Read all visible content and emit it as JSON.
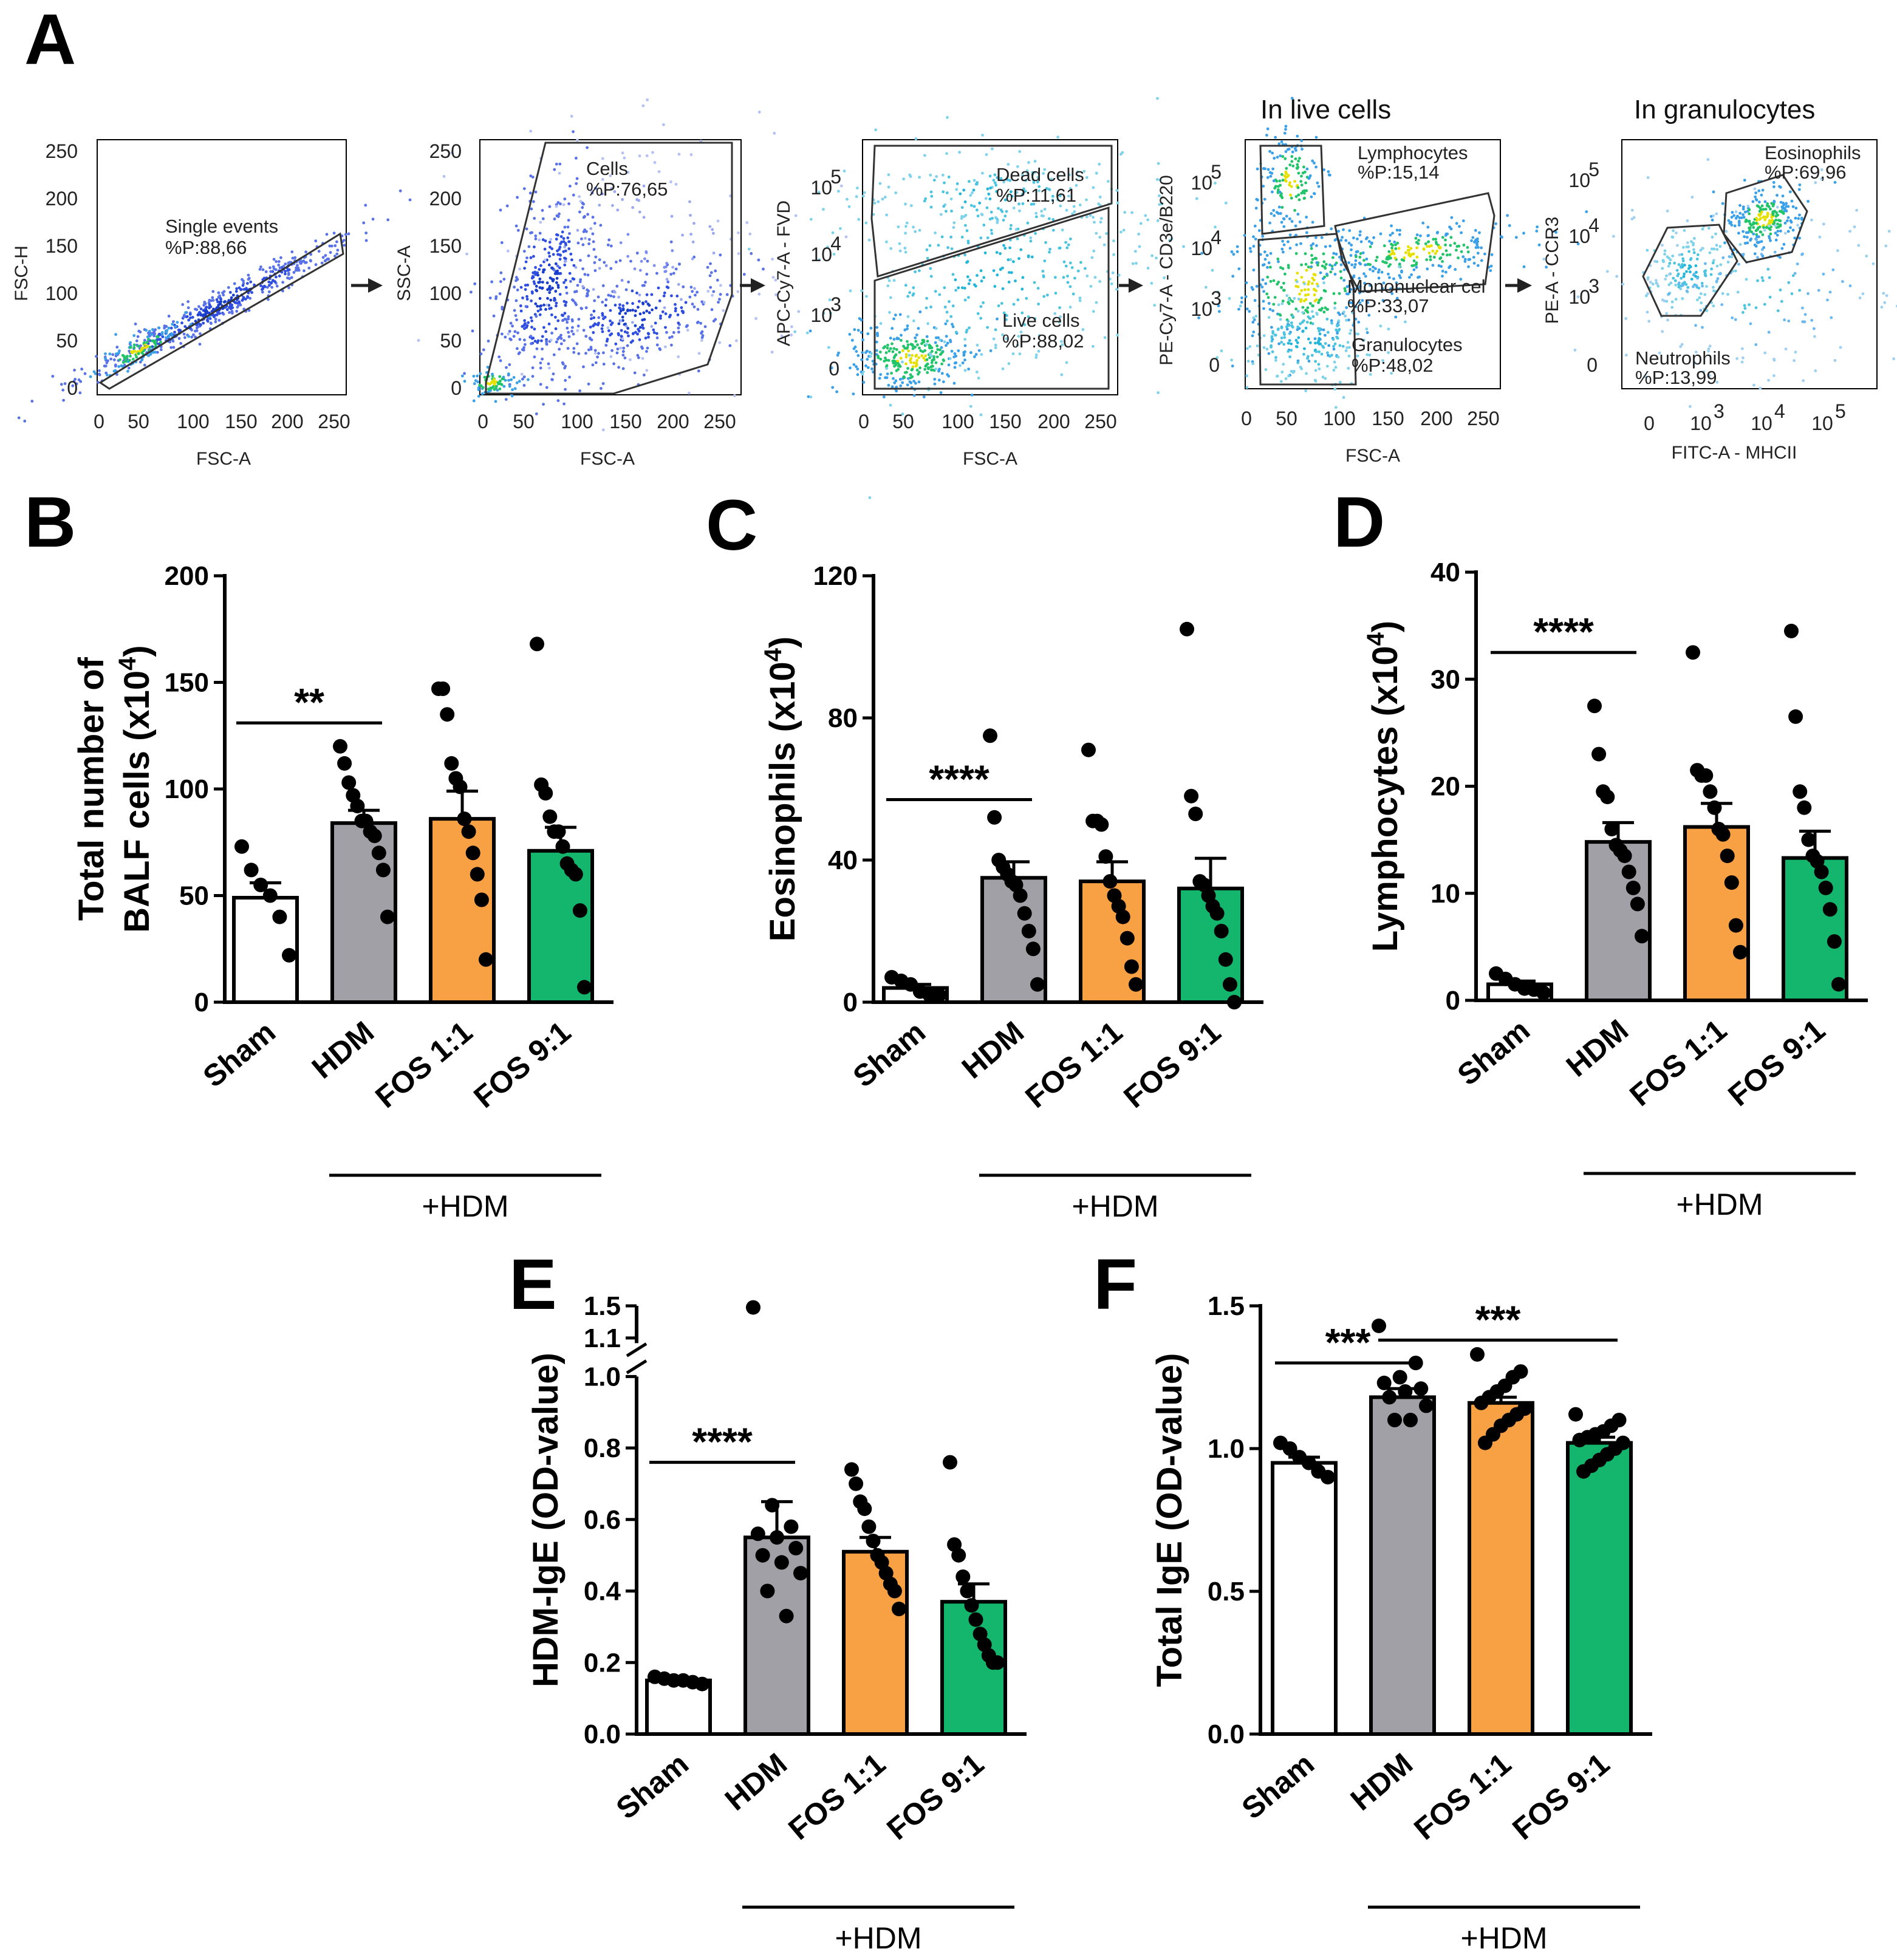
{
  "panel_labels": {
    "A": "A",
    "B": "B",
    "C": "C",
    "D": "D",
    "E": "E",
    "F": "F"
  },
  "facs": {
    "arrow": "→",
    "titles": {
      "live": "In live cells",
      "gran": "In granulocytes"
    },
    "p1": {
      "xlabel": "FSC-A",
      "ylabel": "FSC-H",
      "xticks": [
        "0",
        "50",
        "100",
        "150",
        "200",
        "250"
      ],
      "yticks": [
        "0",
        "50",
        "100",
        "150",
        "200",
        "250"
      ],
      "gate_name": "Single events",
      "gate_pct": "%P:88,66"
    },
    "p2": {
      "xlabel": "FSC-A",
      "ylabel": "SSC-A",
      "xticks": [
        "0",
        "50",
        "100",
        "150",
        "200",
        "250"
      ],
      "yticks": [
        "0",
        "50",
        "100",
        "150",
        "200",
        "250"
      ],
      "gate_name": "Cells",
      "gate_pct": "%P:76,65"
    },
    "p3": {
      "xlabel": "FSC-A",
      "ylabel": "APC-Cy7-A - FVD",
      "xticks": [
        "0",
        "50",
        "100",
        "150",
        "200",
        "250"
      ],
      "yticks": [
        "0",
        "10",
        "10",
        "10"
      ],
      "ysup": [
        "3",
        "4",
        "5"
      ],
      "gate1_name": "Dead cells",
      "gate1_pct": "%P:11,61",
      "gate2_name": "Live cells",
      "gate2_pct": "%P:88,02"
    },
    "p4": {
      "xlabel": "FSC-A",
      "ylabel": "PE-Cy7-A - CD3e/B220",
      "xticks": [
        "0",
        "50",
        "100",
        "150",
        "200",
        "250"
      ],
      "yticks": [
        "0",
        "10",
        "10",
        "10"
      ],
      "ysup": [
        "3",
        "4",
        "5"
      ],
      "gate1_name": "Lymphocytes",
      "gate1_pct": "%P:15,14",
      "gate2_name": "Mononuclear cel",
      "gate2_pct": "%P:33,07",
      "gate3_name": "Granulocytes",
      "gate3_pct": "%P:48,02"
    },
    "p5": {
      "xlabel": "FITC-A - MHCII",
      "ylabel": "PE-A - CCR3",
      "xticks": [
        "0",
        "10",
        "10",
        "10"
      ],
      "xsup": [
        "3",
        "4",
        "5"
      ],
      "yticks": [
        "0",
        "10",
        "10",
        "10"
      ],
      "ysup": [
        "3",
        "4",
        "5"
      ],
      "gate1_name": "Eosinophils",
      "gate1_pct": "%P:69,96",
      "gate2_name": "Neutrophils",
      "gate2_pct": "%P:13,99"
    }
  },
  "colors": {
    "Sham": "#ffffff",
    "HDM": "#a0a0a6",
    "FOS 1:1": "#f7a044",
    "FOS 9:1": "#14b56c"
  },
  "chart_data": [
    {
      "panel": "B",
      "type": "bar",
      "categories": [
        "Sham",
        "HDM",
        "FOS 1:1",
        "FOS 9:1"
      ],
      "ylabel_pre": "Total number of",
      "ylabel_main": "BALF cells (x10",
      "ylabel_sup": "4",
      "ylabel_post": ")",
      "ylim": [
        0,
        200
      ],
      "yticks": [
        "0",
        "50",
        "100",
        "150",
        "200"
      ],
      "ytick_values": [
        0,
        50,
        100,
        150,
        200
      ],
      "means": [
        49,
        84,
        86,
        71
      ],
      "sem": [
        7,
        6,
        13,
        11
      ],
      "points": [
        [
          73,
          62,
          55,
          50,
          40,
          22
        ],
        [
          120,
          112,
          103,
          97,
          92,
          85,
          85,
          80,
          78,
          70,
          62,
          40
        ],
        [
          147,
          147,
          135,
          112,
          105,
          101,
          86,
          80,
          70,
          60,
          48,
          20
        ],
        [
          168,
          102,
          98,
          87,
          80,
          80,
          73,
          65,
          62,
          60,
          43,
          7
        ]
      ],
      "brackets": [
        {
          "from": 0,
          "to": 1,
          "label": "**",
          "y": 131
        }
      ],
      "group_label": "+HDM"
    },
    {
      "panel": "C",
      "type": "bar",
      "categories": [
        "Sham",
        "HDM",
        "FOS 1:1",
        "FOS 9:1"
      ],
      "ylabel_main": "Eosinophils (x10",
      "ylabel_sup": "4",
      "ylabel_post": ")",
      "ylim": [
        0,
        120
      ],
      "yticks": [
        "0",
        "40",
        "80",
        "120"
      ],
      "ytick_values": [
        0,
        40,
        80,
        120
      ],
      "means": [
        4,
        35,
        34,
        32
      ],
      "sem": [
        1,
        4.5,
        5.5,
        8.5
      ],
      "points": [
        [
          7,
          6,
          5,
          3,
          2,
          2
        ],
        [
          75,
          52,
          40,
          38,
          36,
          34,
          33,
          30,
          25,
          20,
          15,
          5
        ],
        [
          71,
          51,
          51,
          50,
          41,
          34,
          30,
          27,
          24,
          18,
          10,
          5
        ],
        [
          105,
          58,
          53,
          34,
          33,
          30,
          27,
          25,
          20,
          12,
          5,
          0
        ]
      ],
      "brackets": [
        {
          "from": 0,
          "to": 1,
          "label": "****",
          "y": 57
        }
      ],
      "group_label": "+HDM"
    },
    {
      "panel": "D",
      "type": "bar",
      "categories": [
        "Sham",
        "HDM",
        "FOS 1:1",
        "FOS 9:1"
      ],
      "ylabel_main": "Lymphocytes (x10",
      "ylabel_sup": "4",
      "ylabel_post": ")",
      "ylim": [
        0,
        40
      ],
      "yticks": [
        "0",
        "10",
        "20",
        "30",
        "40"
      ],
      "ytick_values": [
        0,
        10,
        20,
        30,
        40
      ],
      "means": [
        1.5,
        14.8,
        16.2,
        13.3
      ],
      "sem": [
        0.3,
        1.8,
        2.2,
        2.5
      ],
      "points": [
        [
          2.5,
          2.0,
          1.5,
          1.1,
          1.0,
          0.7
        ],
        [
          27.5,
          23.0,
          19.5,
          19.0,
          16.0,
          14.5,
          14.0,
          13.5,
          12.0,
          10.5,
          9.0,
          6.0
        ],
        [
          32.5,
          21.5,
          21.0,
          21.0,
          19.5,
          18.0,
          16.0,
          15.5,
          13.5,
          11.0,
          7.0,
          4.5
        ],
        [
          34.5,
          26.5,
          19.5,
          18.0,
          15.0,
          13.5,
          13.0,
          12.0,
          10.5,
          8.5,
          5.5,
          1.5
        ]
      ],
      "brackets": [
        {
          "from": 0,
          "to": 1,
          "label": "****",
          "y": 32.5
        }
      ],
      "group_label": "+HDM"
    },
    {
      "panel": "E",
      "type": "bar",
      "categories": [
        "Sham",
        "HDM",
        "FOS 1:1",
        "FOS 9:1"
      ],
      "ylabel": "HDM-IgE (OD-value)",
      "ylim": [
        0,
        1.5
      ],
      "yticks": [
        "0.0",
        "0.2",
        "0.4",
        "0.6",
        "0.8",
        "1.0",
        "1.1",
        "1.5"
      ],
      "ytick_values": [
        0,
        0.2,
        0.4,
        0.6,
        0.8,
        1.0,
        1.1,
        1.5
      ],
      "axis_break": [
        1.0,
        1.1
      ],
      "means": [
        0.15,
        0.55,
        0.51,
        0.37
      ],
      "sem": [
        0.005,
        0.1,
        0.04,
        0.05
      ],
      "points": [
        [
          0.16,
          0.155,
          0.15,
          0.15,
          0.145,
          0.14
        ],
        [
          1.48,
          0.64,
          0.58,
          0.56,
          0.55,
          0.52,
          0.5,
          0.48,
          0.45,
          0.4,
          0.33
        ],
        [
          0.74,
          0.7,
          0.65,
          0.63,
          0.58,
          0.54,
          0.5,
          0.48,
          0.45,
          0.42,
          0.4,
          0.35
        ],
        [
          0.76,
          0.53,
          0.5,
          0.44,
          0.4,
          0.36,
          0.32,
          0.28,
          0.25,
          0.22,
          0.2,
          0.2
        ]
      ],
      "brackets": [
        {
          "from": 0,
          "to": 1,
          "label": "****",
          "y": 0.76
        }
      ],
      "group_label": "+HDM"
    },
    {
      "panel": "F",
      "type": "bar",
      "categories": [
        "Sham",
        "HDM",
        "FOS 1:1",
        "FOS 9:1"
      ],
      "ylabel": "Total IgE (OD-value)",
      "ylim": [
        0,
        1.5
      ],
      "yticks": [
        "0.0",
        "0.5",
        "1.0",
        "1.5"
      ],
      "ytick_values": [
        0,
        0.5,
        1.0,
        1.5
      ],
      "means": [
        0.95,
        1.18,
        1.16,
        1.02
      ],
      "sem": [
        0.02,
        0.03,
        0.02,
        0.02
      ],
      "points": [
        [
          1.02,
          1.0,
          0.97,
          0.95,
          0.92,
          0.9
        ],
        [
          1.43,
          1.3,
          1.25,
          1.23,
          1.21,
          1.2,
          1.18,
          1.15,
          1.1,
          1.1
        ],
        [
          1.33,
          1.27,
          1.25,
          1.22,
          1.2,
          1.18,
          1.16,
          1.14,
          1.12,
          1.1,
          1.08,
          1.05,
          1.02
        ],
        [
          1.12,
          1.1,
          1.08,
          1.06,
          1.05,
          1.04,
          1.03,
          1.02,
          1.0,
          0.98,
          0.96,
          0.94,
          0.92
        ]
      ],
      "brackets": [
        {
          "from": 0,
          "to": 1,
          "label": "***",
          "y": 1.3
        },
        {
          "from": 1,
          "to": 3,
          "label": "***",
          "y": 1.38
        }
      ],
      "group_label": "+HDM"
    }
  ]
}
